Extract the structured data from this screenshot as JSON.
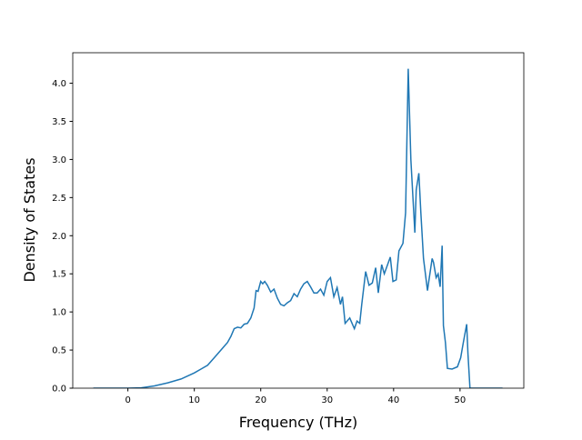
{
  "chart_data": {
    "type": "line",
    "x_label": "Frequency (THz)",
    "y_label": "Density of States",
    "xlim": [
      -8.3,
      59.6
    ],
    "ylim": [
      0,
      4.4
    ],
    "xticks": [
      0,
      10,
      20,
      30,
      40,
      50
    ],
    "yticks": [
      {
        "value": 0,
        "label": "0.0"
      },
      {
        "value": 0.5,
        "label": "0.5"
      },
      {
        "value": 1,
        "label": "1.0"
      },
      {
        "value": 1.5,
        "label": "1.5"
      },
      {
        "value": 2,
        "label": "2.0"
      },
      {
        "value": 2.5,
        "label": "2.5"
      },
      {
        "value": 3,
        "label": "3.0"
      },
      {
        "value": 3.5,
        "label": "3.5"
      },
      {
        "value": 4,
        "label": "4.0"
      }
    ],
    "series": [
      {
        "color": "#1f77b4",
        "x": [
          -5.2,
          0,
          2,
          4,
          6,
          8,
          10,
          11,
          12,
          13,
          14,
          15,
          15.5,
          16,
          16.5,
          17,
          17.5,
          18,
          18.5,
          19,
          19.3,
          19.6,
          20,
          20.3,
          20.6,
          21,
          21.5,
          22,
          22.5,
          23,
          23.5,
          24,
          24.5,
          25,
          25.5,
          26,
          26.5,
          27,
          27.5,
          28,
          28.5,
          29,
          29.5,
          30,
          30.5,
          31,
          31.5,
          32,
          32.3,
          32.7,
          33.4,
          34.1,
          34.5,
          34.9,
          35.2,
          35.8,
          36.3,
          36.8,
          37.3,
          37.7,
          38.2,
          38.6,
          39.5,
          39.9,
          40.4,
          40.8,
          41.4,
          41.8,
          42.2,
          42.6,
          43.2,
          43.4,
          43.8,
          44.1,
          44.5,
          45.1,
          45.3,
          45.8,
          46,
          46.4,
          46.7,
          47,
          47.3,
          47.5,
          47.8,
          48.1,
          48.8,
          49.6,
          50.1,
          50.5,
          51,
          51.2,
          51.5,
          56.4
        ],
        "values": [
          0,
          0,
          0.005,
          0.03,
          0.07,
          0.12,
          0.2,
          0.25,
          0.3,
          0.4,
          0.5,
          0.6,
          0.68,
          0.78,
          0.8,
          0.79,
          0.84,
          0.85,
          0.92,
          1.05,
          1.28,
          1.27,
          1.4,
          1.37,
          1.4,
          1.35,
          1.26,
          1.3,
          1.18,
          1.1,
          1.08,
          1.12,
          1.15,
          1.24,
          1.2,
          1.3,
          1.37,
          1.4,
          1.33,
          1.25,
          1.25,
          1.3,
          1.22,
          1.4,
          1.45,
          1.2,
          1.32,
          1.1,
          1.2,
          0.85,
          0.92,
          0.78,
          0.88,
          0.85,
          1.1,
          1.53,
          1.35,
          1.38,
          1.58,
          1.25,
          1.62,
          1.5,
          1.72,
          1.4,
          1.42,
          1.8,
          1.9,
          2.3,
          4.19,
          3.0,
          2.04,
          2.6,
          2.82,
          2.3,
          1.7,
          1.28,
          1.4,
          1.7,
          1.65,
          1.45,
          1.5,
          1.33,
          1.87,
          0.82,
          0.6,
          0.26,
          0.25,
          0.28,
          0.4,
          0.6,
          0.84,
          0.45,
          0,
          0
        ]
      }
    ]
  }
}
